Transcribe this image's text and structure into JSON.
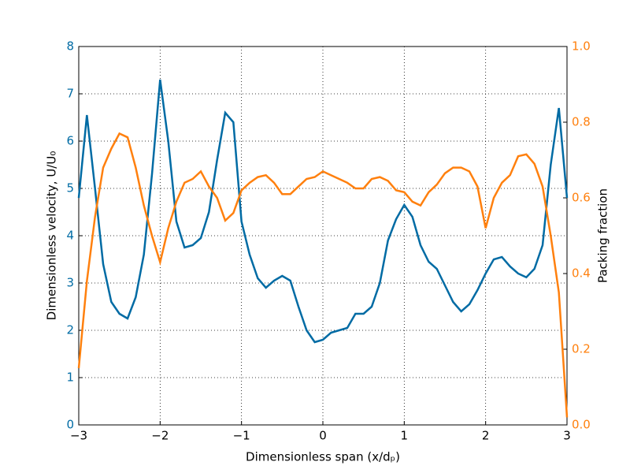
{
  "chart_data": {
    "type": "line",
    "x_label": "Dimensionless span (x/dₚ)",
    "y_label": "Dimensionless velocity, U/U₀",
    "y2_label": "Packing fraction",
    "x": [
      -3.0,
      -2.9,
      -2.8,
      -2.7,
      -2.6,
      -2.5,
      -2.4,
      -2.3,
      -2.2,
      -2.1,
      -2.0,
      -1.9,
      -1.8,
      -1.7,
      -1.6,
      -1.5,
      -1.4,
      -1.3,
      -1.2,
      -1.1,
      -1.0,
      -0.9,
      -0.8,
      -0.7,
      -0.6,
      -0.5,
      -0.4,
      -0.3,
      -0.2,
      -0.1,
      0.0,
      0.1,
      0.2,
      0.3,
      0.4,
      0.5,
      0.6,
      0.7,
      0.8,
      0.9,
      1.0,
      1.1,
      1.2,
      1.3,
      1.4,
      1.5,
      1.6,
      1.7,
      1.8,
      1.9,
      2.0,
      2.1,
      2.2,
      2.3,
      2.4,
      2.5,
      2.6,
      2.7,
      2.8,
      2.9,
      3.0
    ],
    "series": [
      {
        "color": "#006ba4",
        "axis": "y",
        "values": [
          4.8,
          6.55,
          5.0,
          3.4,
          2.6,
          2.35,
          2.25,
          2.7,
          3.6,
          5.3,
          7.3,
          6.0,
          4.3,
          3.75,
          3.8,
          3.95,
          4.5,
          5.6,
          6.6,
          6.4,
          4.3,
          3.6,
          3.1,
          2.9,
          3.05,
          3.15,
          3.05,
          2.5,
          2.0,
          1.75,
          1.8,
          1.95,
          2.0,
          2.05,
          2.35,
          2.35,
          2.5,
          3.0,
          3.9,
          4.35,
          4.65,
          4.4,
          3.8,
          3.45,
          3.3,
          2.95,
          2.6,
          2.4,
          2.55,
          2.85,
          3.2,
          3.5,
          3.55,
          3.35,
          3.2,
          3.12,
          3.3,
          3.8,
          5.5,
          6.7,
          4.8
        ]
      },
      {
        "color": "#ff800e",
        "axis": "y2",
        "values": [
          0.15,
          0.38,
          0.55,
          0.68,
          0.73,
          0.77,
          0.76,
          0.68,
          0.58,
          0.5,
          0.43,
          0.52,
          0.59,
          0.64,
          0.65,
          0.67,
          0.63,
          0.6,
          0.54,
          0.56,
          0.62,
          0.64,
          0.655,
          0.66,
          0.64,
          0.61,
          0.61,
          0.63,
          0.65,
          0.655,
          0.67,
          0.66,
          0.65,
          0.64,
          0.625,
          0.625,
          0.65,
          0.655,
          0.645,
          0.62,
          0.615,
          0.59,
          0.58,
          0.615,
          0.635,
          0.665,
          0.68,
          0.68,
          0.67,
          0.63,
          0.52,
          0.6,
          0.64,
          0.66,
          0.71,
          0.715,
          0.69,
          0.63,
          0.5,
          0.35,
          0.02
        ]
      }
    ],
    "xlim": [
      -3,
      3
    ],
    "xticks": [
      {
        "value": -3,
        "label": "−3"
      },
      {
        "value": -2,
        "label": "−2"
      },
      {
        "value": -1,
        "label": "−1"
      },
      0,
      1,
      2,
      3
    ],
    "ylim": [
      0,
      8
    ],
    "yticks": [
      0,
      1,
      2,
      3,
      4,
      5,
      6,
      7,
      8
    ],
    "y2lim": [
      0,
      1
    ],
    "y2ticks": [
      {
        "value": 0,
        "label": "0.0"
      },
      0.2,
      0.4,
      0.6,
      0.8,
      {
        "value": 1,
        "label": "1.0"
      }
    ],
    "y_tick_color": "#006ba4",
    "y2_tick_color": "#ff800e",
    "grid": true
  }
}
